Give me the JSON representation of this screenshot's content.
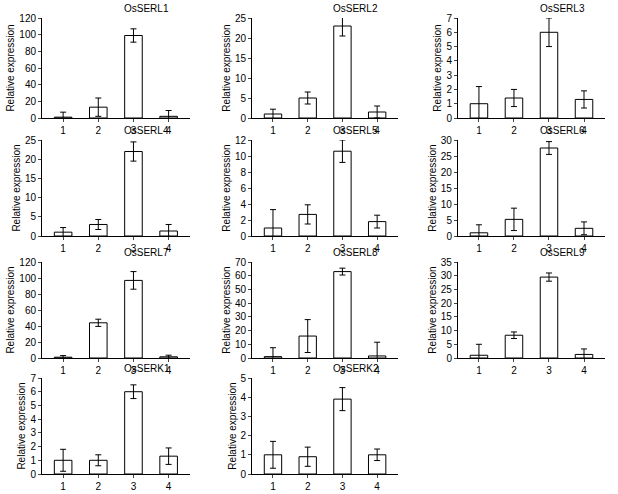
{
  "chart_data": [
    {
      "type": "bar",
      "title": "OsSERL1",
      "y_label": "Relative expression",
      "categories": [
        "1",
        "2",
        "3",
        "4"
      ],
      "values": [
        1,
        13,
        99,
        2
      ],
      "errors": [
        6,
        11,
        8,
        7
      ],
      "color": "#ffffff",
      "ylim": [
        0,
        120
      ],
      "yticks": [
        0,
        20,
        40,
        60,
        80,
        100,
        120
      ],
      "grid": false
    },
    {
      "type": "bar",
      "title": "OsSERL2",
      "y_label": "Relative expression",
      "categories": [
        "1",
        "2",
        "3",
        "4"
      ],
      "values": [
        1,
        5,
        23,
        1.5
      ],
      "errors": [
        1.2,
        1.5,
        2.5,
        1.5
      ],
      "color": "#ffffff",
      "ylim": [
        0,
        25
      ],
      "yticks": [
        0,
        5,
        10,
        15,
        20,
        25
      ],
      "grid": false
    },
    {
      "type": "bar",
      "title": "OsSERL3",
      "y_label": "Relative expression",
      "categories": [
        "1",
        "2",
        "3",
        "4"
      ],
      "values": [
        1,
        1.4,
        6,
        1.3
      ],
      "errors": [
        1.2,
        0.6,
        1,
        0.6
      ],
      "color": "#ffffff",
      "ylim": [
        0,
        7
      ],
      "yticks": [
        0,
        1,
        2,
        3,
        4,
        5,
        6,
        7
      ],
      "grid": false
    },
    {
      "type": "bar",
      "title": "OsSERL4",
      "y_label": "Relative expression",
      "categories": [
        "1",
        "2",
        "3",
        "4"
      ],
      "values": [
        1,
        3,
        22,
        1.3
      ],
      "errors": [
        1.2,
        1.3,
        2.5,
        1.7
      ],
      "color": "#ffffff",
      "ylim": [
        0,
        25
      ],
      "yticks": [
        0,
        5,
        10,
        15,
        20,
        25
      ],
      "grid": false
    },
    {
      "type": "bar",
      "title": "OsSERL5",
      "y_label": "Relative expression",
      "categories": [
        "1",
        "2",
        "3",
        "4"
      ],
      "values": [
        1,
        2.7,
        10.6,
        1.8
      ],
      "errors": [
        2.3,
        1.2,
        1.4,
        0.8
      ],
      "color": "#ffffff",
      "ylim": [
        0,
        12
      ],
      "yticks": [
        0,
        2,
        4,
        6,
        8,
        10,
        12
      ],
      "grid": false
    },
    {
      "type": "bar",
      "title": "OsSERL6",
      "y_label": "Relative expression",
      "categories": [
        "1",
        "2",
        "3",
        "4"
      ],
      "values": [
        1,
        5.2,
        27.5,
        2.4
      ],
      "errors": [
        2.5,
        3.5,
        2,
        2
      ],
      "color": "#ffffff",
      "ylim": [
        0,
        30
      ],
      "yticks": [
        0,
        5,
        10,
        15,
        20,
        25,
        30
      ],
      "grid": false
    },
    {
      "type": "bar",
      "title": "OsSERL7",
      "y_label": "Relative expression",
      "categories": [
        "1",
        "2",
        "3",
        "4"
      ],
      "values": [
        1,
        44,
        97,
        1.5
      ],
      "errors": [
        2,
        4.5,
        11,
        2
      ],
      "color": "#ffffff",
      "ylim": [
        0,
        120
      ],
      "yticks": [
        0,
        20,
        40,
        60,
        80,
        100,
        120
      ],
      "grid": false
    },
    {
      "type": "bar",
      "title": "OsSERL8",
      "y_label": "Relative expression",
      "categories": [
        "1",
        "2",
        "3",
        "4"
      ],
      "values": [
        1,
        16,
        63,
        1.5
      ],
      "errors": [
        6.5,
        12,
        2.5,
        10
      ],
      "color": "#ffffff",
      "ylim": [
        0,
        70
      ],
      "yticks": [
        0,
        10,
        20,
        30,
        40,
        50,
        60,
        70
      ],
      "grid": false
    },
    {
      "type": "bar",
      "title": "OsSERL9",
      "y_label": "Relative expression",
      "categories": [
        "1",
        "2",
        "3",
        "4"
      ],
      "values": [
        1,
        8.3,
        29.5,
        1.3
      ],
      "errors": [
        4,
        1.2,
        1.5,
        2
      ],
      "color": "#ffffff",
      "ylim": [
        0,
        35
      ],
      "yticks": [
        0,
        5,
        10,
        15,
        20,
        25,
        30,
        35
      ],
      "grid": false
    },
    {
      "type": "bar",
      "title": "OsSERK1",
      "y_label": "Relative expression",
      "categories": [
        "1",
        "2",
        "3",
        "4"
      ],
      "values": [
        1,
        1,
        6,
        1.3
      ],
      "errors": [
        0.8,
        0.4,
        0.5,
        0.6
      ],
      "color": "#ffffff",
      "ylim": [
        0,
        7
      ],
      "yticks": [
        0,
        1,
        2,
        3,
        4,
        5,
        6,
        7
      ],
      "grid": false
    },
    {
      "type": "bar",
      "title": "OsSERK2",
      "y_label": "Relative expression",
      "categories": [
        "1",
        "2",
        "3",
        "4"
      ],
      "values": [
        1,
        0.9,
        3.9,
        1
      ],
      "errors": [
        0.7,
        0.5,
        0.6,
        0.3
      ],
      "color": "#ffffff",
      "ylim": [
        0,
        5
      ],
      "yticks": [
        0,
        1,
        2,
        3,
        4,
        5
      ],
      "grid": false
    }
  ]
}
